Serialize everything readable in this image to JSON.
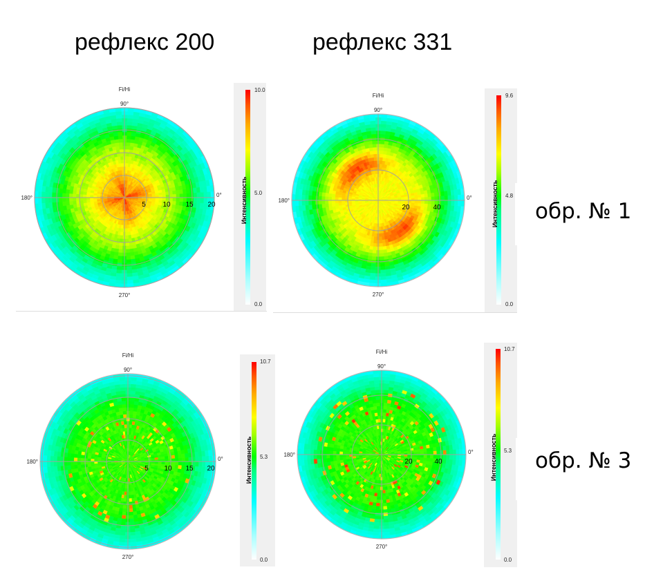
{
  "columns": [
    {
      "title": "рефлекс 200"
    },
    {
      "title": "рефлекс 331"
    }
  ],
  "rows": [
    {
      "label": "обр. № 1"
    },
    {
      "label": "обр. № 3"
    }
  ],
  "common": {
    "plot_title": "Fi/Hi",
    "colorbar_title": "Интенсивность",
    "angle_labels": {
      "a0": "0°",
      "a90": "90°",
      "a180": "180°",
      "a270": "270°"
    }
  },
  "chart_data": [
    {
      "type": "heatmap",
      "subtype": "polar",
      "id": "r200_s1",
      "title": "Fi/Hi",
      "column": "рефлекс 200",
      "row": "обр. № 1",
      "radial_ticks": [
        "5",
        "10",
        "15",
        "20"
      ],
      "radial_max": 20,
      "angle_ticks": [
        "0°",
        "90°",
        "180°",
        "270°"
      ],
      "colorbar": {
        "label": "Интенсивность",
        "min": "0.0",
        "mid": "5.0",
        "max": "10.0"
      },
      "pattern": "four-lobed cross maximum near centre (lobes toward ~60°, ~170°, ~260°, ~350°), yellow ring to r≈10, green to r≈16, cyan edge",
      "center_value": 9.5,
      "edge_value": 2.5
    },
    {
      "type": "heatmap",
      "subtype": "polar",
      "id": "r331_s1",
      "title": "Fi/Hi",
      "column": "рефлекс 331",
      "row": "обр. № 1",
      "radial_ticks": [
        "20",
        "40"
      ],
      "radial_max": 56,
      "angle_ticks": [
        "0°",
        "90°",
        "180°",
        "270°"
      ],
      "colorbar": {
        "label": "Интенсивность",
        "min": "0.0",
        "mid": "4.8",
        "max": "9.6"
      },
      "pattern": "two crescent maxima at r≈20–30 centred around 125° and 305°, yellow-green centre, green then cyan edge",
      "center_value": 6.0,
      "edge_value": 2.5
    },
    {
      "type": "heatmap",
      "subtype": "polar",
      "id": "r200_s3",
      "title": "Fi/Hi",
      "column": "рефлекс 200",
      "row": "обр. № 3",
      "radial_ticks": [
        "5",
        "10",
        "15",
        "20"
      ],
      "radial_max": 20,
      "angle_ticks": [
        "0°",
        "90°",
        "180°",
        "270°"
      ],
      "colorbar": {
        "label": "Интенсивность",
        "min": "0.0",
        "mid": "5.3",
        "max": "10.7"
      },
      "pattern": "mostly green field with discrete yellow/red arc-shaped spots on rings r≈3–14, cyan outer ring",
      "center_value": 5.5,
      "edge_value": 2.5
    },
    {
      "type": "heatmap",
      "subtype": "polar",
      "id": "r331_s3",
      "title": "Fi/Hi",
      "column": "рефлекс 331",
      "row": "обр. № 3",
      "radial_ticks": [
        "20",
        "40"
      ],
      "radial_max": 56,
      "angle_ticks": [
        "0°",
        "90°",
        "180°",
        "270°"
      ],
      "colorbar": {
        "label": "Интенсивность",
        "min": "0.0",
        "mid": "5.3",
        "max": "10.7"
      },
      "pattern": "green field speckled with many small yellow/red spots within r≈45, cyan outer ring",
      "center_value": 5.5,
      "edge_value": 2.5
    }
  ]
}
